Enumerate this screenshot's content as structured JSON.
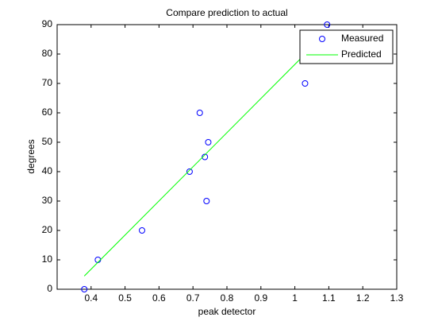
{
  "chart_data": {
    "type": "line",
    "title": "Compare prediction to actual",
    "x_label": "peak detector",
    "y_label": "degrees",
    "xlim": [
      0.3,
      1.3
    ],
    "xticks": [
      0.4,
      0.5,
      0.6,
      0.7,
      0.8,
      0.9,
      1,
      1.1,
      1.2,
      1.3
    ],
    "ylim": [
      0,
      90
    ],
    "yticks": [
      0,
      10,
      20,
      30,
      40,
      50,
      60,
      70,
      80,
      90
    ],
    "legend": "northeast",
    "series": [
      {
        "name": "Measured",
        "color": "#0000ff",
        "mode": "markers",
        "x": [
          0.38,
          0.42,
          0.55,
          0.69,
          0.72,
          0.735,
          0.74,
          0.745,
          1.03,
          1.095
        ],
        "values": [
          0,
          10,
          20,
          40,
          60,
          45,
          30,
          50,
          70,
          90
        ]
      },
      {
        "name": "Predicted",
        "color": "#00ff00",
        "mode": "line",
        "x": [
          0.38,
          1.095
        ],
        "values": [
          4.5,
          87.5
        ]
      }
    ]
  }
}
